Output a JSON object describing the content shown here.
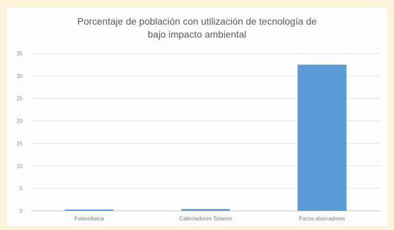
{
  "chart_data": {
    "type": "bar",
    "title_lines": [
      "Porcentaje de población con utilización de tecnología de",
      "bajo impacto ambiental"
    ],
    "categories": [
      "Fotovoltaica",
      "Calentadores Solares",
      "Focos ahorradores"
    ],
    "values": [
      0.3,
      0.4,
      32.5
    ],
    "ylim": [
      0,
      35
    ],
    "yticks": [
      0,
      5,
      10,
      15,
      20,
      25,
      30,
      35
    ],
    "grid": true,
    "legend": "none",
    "colors": {
      "bar": "#5b9bd5",
      "grid": "#e3e3e3",
      "axis": "#c9c9c9",
      "background": "#fdf3dd"
    }
  }
}
